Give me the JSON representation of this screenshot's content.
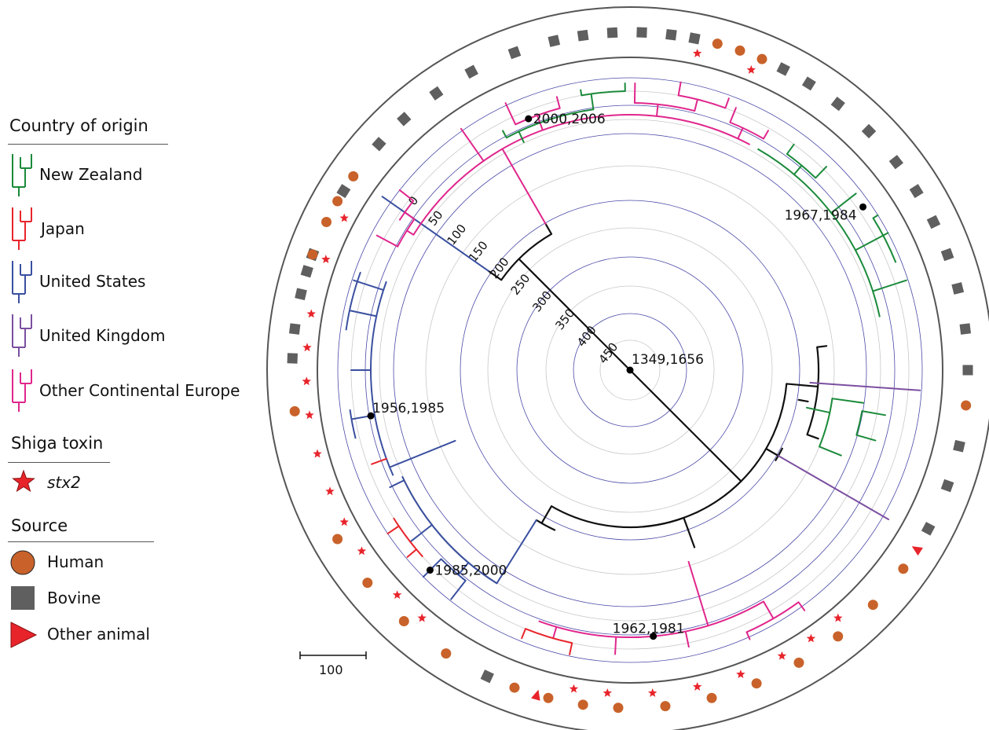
{
  "legend": {
    "country_title": "Country of origin",
    "countries": [
      {
        "label": "New Zealand",
        "color": "#1a8a3a"
      },
      {
        "label": "Japan",
        "color": "#e8242b"
      },
      {
        "label": "United States",
        "color": "#3a4fa0"
      },
      {
        "label": "United Kingdom",
        "color": "#7b4fa0"
      },
      {
        "label": "Other Continental Europe",
        "color": "#e0268c"
      }
    ],
    "toxin_title": "Shiga toxin",
    "toxin_label": "stx2",
    "toxin_color": "#e8242b",
    "source_title": "Source",
    "sources": [
      {
        "label": "Human",
        "shape": "circle",
        "color": "#c8622a"
      },
      {
        "label": "Bovine",
        "shape": "square",
        "color": "#5f5f5f"
      },
      {
        "label": "Other animal",
        "shape": "triangle",
        "color": "#e8242b"
      }
    ]
  },
  "scale_bar": {
    "label": "100"
  },
  "ring_labels": [
    "0",
    "50",
    "100",
    "150",
    "200",
    "250",
    "300",
    "350",
    "400",
    "450"
  ],
  "node_labels": [
    "1349,1656",
    "2000,2006",
    "1967,1984",
    "1956,1985",
    "1985,2000",
    "1962,1981"
  ],
  "colors": {
    "branch": "#111111",
    "ring_blue": "#4a4aa8",
    "ring_grey": "#c8c8c8",
    "outer_ring": "#555555"
  }
}
